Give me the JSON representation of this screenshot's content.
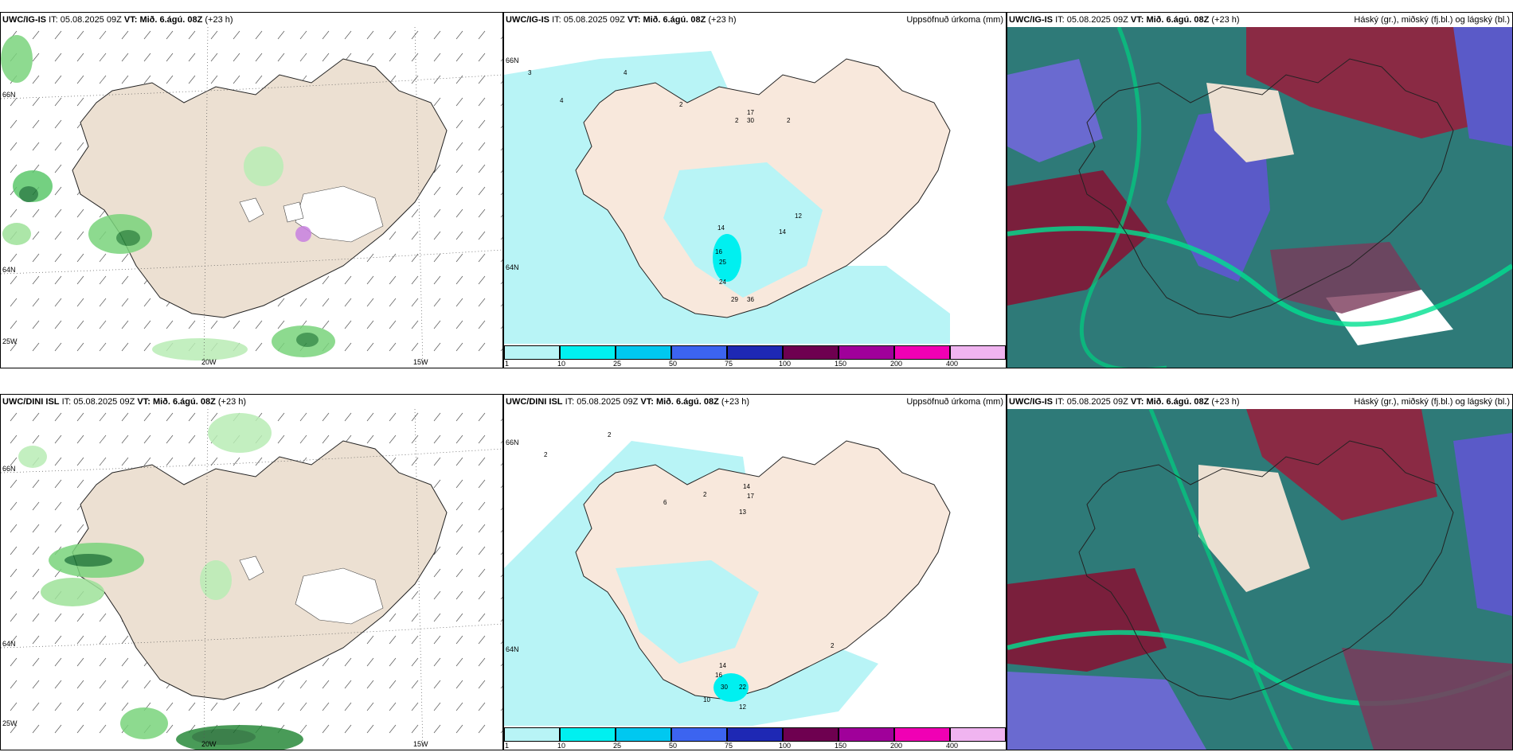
{
  "panels": [
    {
      "id": "p1",
      "model": "UWC/IG-IS",
      "it_label": "IT:",
      "it_value": "05.08.2025 09Z",
      "vt_label": "VT:",
      "vt_value": "Mið. 6.ágú. 08Z",
      "lead": "(+23 h)",
      "right_title": "",
      "lat_labels": [
        "66N",
        "64N",
        "25W"
      ],
      "lon_labels": [
        "20W",
        "15W"
      ]
    },
    {
      "id": "p2",
      "model": "UWC/IG-IS",
      "it_label": "IT:",
      "it_value": "05.08.2025 09Z",
      "vt_label": "VT:",
      "vt_value": "Mið. 6.ágú. 08Z",
      "lead": "(+23 h)",
      "right_title": "Uppsöfnuð úrkoma (mm)",
      "lat_labels": [
        "66N",
        "64N"
      ],
      "colorbar_ticks": [
        "1",
        "10",
        "25",
        "50",
        "75",
        "100",
        "150",
        "200",
        "400"
      ]
    },
    {
      "id": "p3",
      "model": "UWC/IG-IS",
      "it_label": "IT:",
      "it_value": "05.08.2025 09Z",
      "vt_label": "VT:",
      "vt_value": "Mið. 6.ágú. 08Z",
      "lead": "(+23 h)",
      "right_title": "Háský (gr.), miðský (fj.bl.) og lágský (bl.)"
    },
    {
      "id": "p4",
      "model": "UWC/DINI ISL",
      "it_label": "IT:",
      "it_value": "05.08.2025 09Z",
      "vt_label": "VT:",
      "vt_value": "Mið. 6.ágú. 08Z",
      "lead": "(+23 h)",
      "right_title": "",
      "lat_labels": [
        "66N",
        "64N",
        "25W"
      ],
      "lon_labels": [
        "20W",
        "15W"
      ]
    },
    {
      "id": "p5",
      "model": "UWC/DINI ISL",
      "it_label": "IT:",
      "it_value": "05.08.2025 09Z",
      "vt_label": "VT:",
      "vt_value": "Mið. 6.ágú. 08Z",
      "lead": "(+23 h)",
      "right_title": "Uppsöfnuð úrkoma (mm)",
      "lat_labels": [
        "66N",
        "64N"
      ],
      "colorbar_ticks": [
        "1",
        "10",
        "25",
        "50",
        "75",
        "100",
        "150",
        "200",
        "400"
      ]
    },
    {
      "id": "p6",
      "model": "UWC/IG-IS",
      "it_label": "IT:",
      "it_value": "05.08.2025 09Z",
      "vt_label": "VT:",
      "vt_value": "Mið. 6.ágú. 08Z",
      "lead": "(+23 h)",
      "right_title": "Háský (gr.), miðský (fj.bl.) og lágský (bl.)"
    }
  ],
  "colorbar_colors": [
    "#b8f4f6",
    "#00f0f0",
    "#00c8f0",
    "#3c64f0",
    "#1e28b4",
    "#6e0050",
    "#a0009a",
    "#f000b4",
    "#f0b4f0"
  ],
  "colors": {
    "land": "#ece0d2",
    "precip_light": "#b8f4f6",
    "cloud_high": "#2d8c78",
    "cloud_mid": "#5a5ac8",
    "cloud_low": "#7a1f3c"
  }
}
